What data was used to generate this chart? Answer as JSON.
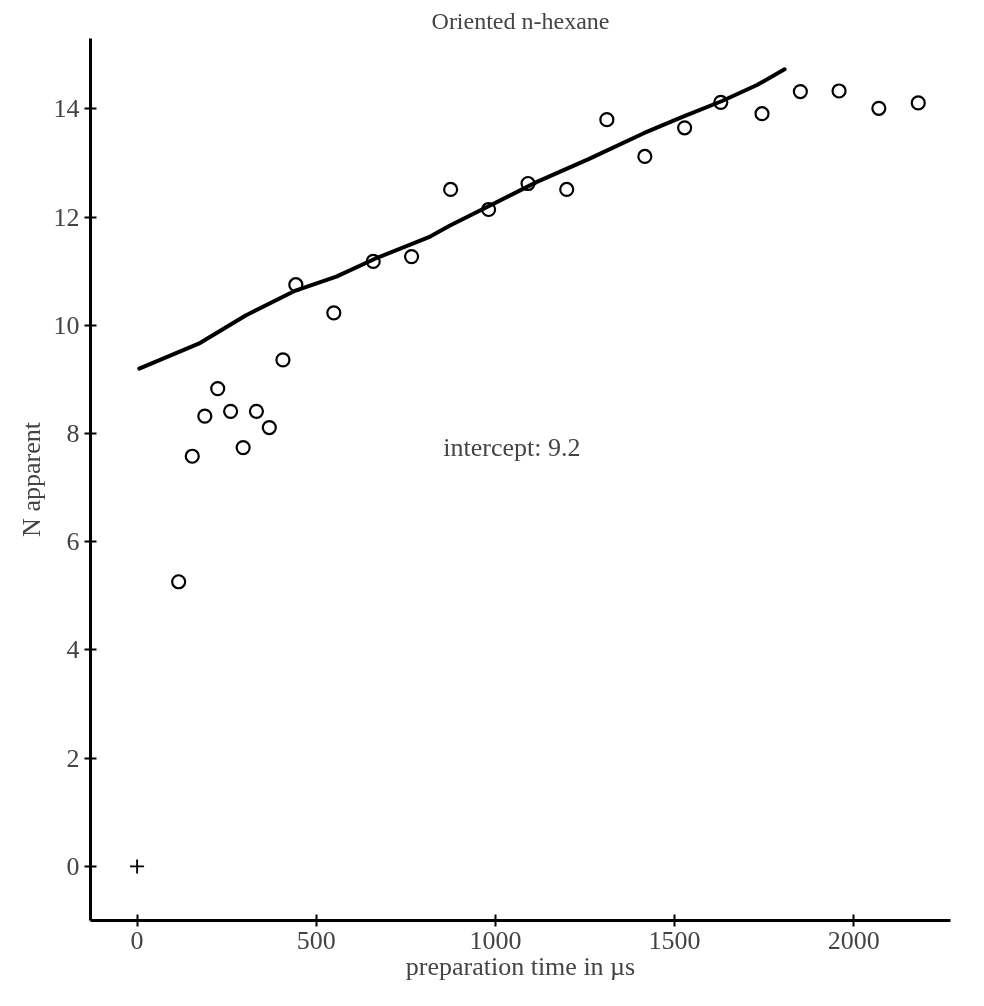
{
  "chart_data": {
    "type": "scatter",
    "title": "Oriented n-hexane",
    "xlabel": "preparation time in µs",
    "ylabel": "N apparent",
    "annotations": [
      "intercept: 9.2"
    ],
    "xlim": [
      -130,
      2270
    ],
    "ylim": [
      -1.0,
      15.3
    ],
    "xticks": [
      0,
      500,
      1000,
      1500,
      2000
    ],
    "yticks": [
      0,
      2,
      4,
      6,
      8,
      10,
      12,
      14
    ],
    "grid": false,
    "series": [
      {
        "marker": "circle",
        "color": "#000000",
        "x": [
          116,
          154,
          189,
          225,
          261,
          296,
          333,
          369,
          407,
          443,
          549,
          659,
          766,
          875,
          981,
          1091,
          1199,
          1311,
          1417,
          1528,
          1629,
          1744,
          1851,
          1959,
          2070,
          2180
        ],
        "values": [
          5.26,
          7.58,
          8.32,
          8.83,
          8.41,
          7.74,
          8.41,
          8.11,
          9.36,
          10.75,
          10.23,
          11.18,
          11.27,
          12.51,
          12.14,
          12.62,
          12.51,
          13.8,
          13.12,
          13.65,
          14.12,
          13.91,
          14.32,
          14.33,
          14.01,
          14.11
        ]
      },
      {
        "marker": "cross",
        "color": "#000000",
        "x": [
          0
        ],
        "values": [
          0
        ]
      },
      {
        "type": "line",
        "marker": "none",
        "line_style": "solid",
        "color": "#000000",
        "x": [
          6,
          172,
          303,
          438,
          556,
          664,
          818,
          872,
          1116,
          1260,
          1414,
          1522,
          1631,
          1730,
          1807
        ],
        "values": [
          9.2,
          9.66,
          10.18,
          10.63,
          10.9,
          11.23,
          11.64,
          11.84,
          12.65,
          13.07,
          13.55,
          13.85,
          14.14,
          14.44,
          14.73
        ]
      }
    ]
  }
}
